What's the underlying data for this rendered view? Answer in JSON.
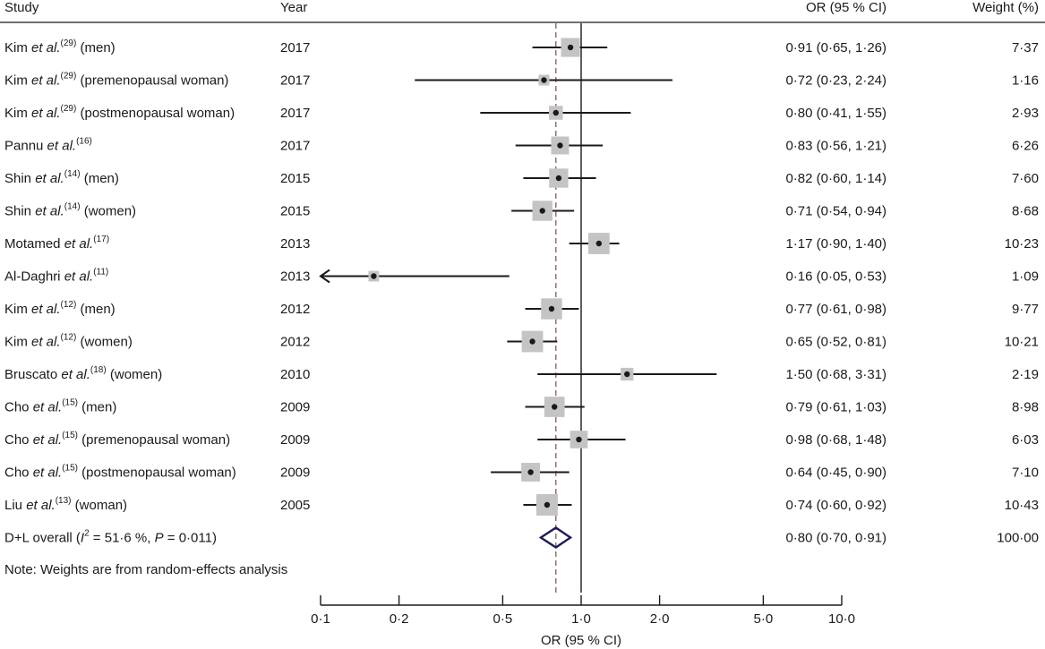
{
  "chart_data": {
    "type": "forest",
    "headers": {
      "study": "Study",
      "year": "Year",
      "or": "OR (95 % CI)",
      "weight": "Weight (%)"
    },
    "rows": [
      {
        "author": "Kim",
        "etal": "et al.",
        "ref": "(29)",
        "group": "(men)",
        "year": "2017",
        "or": 0.91,
        "lo": 0.65,
        "hi": 1.26,
        "or_text": "0·91 (0·65, 1·26)",
        "weight": 7.37,
        "weight_text": "7·37"
      },
      {
        "author": "Kim",
        "etal": "et al.",
        "ref": "(29)",
        "group": "(premenopausal woman)",
        "year": "2017",
        "or": 0.72,
        "lo": 0.23,
        "hi": 2.24,
        "or_text": "0·72 (0·23, 2·24)",
        "weight": 1.16,
        "weight_text": "1·16"
      },
      {
        "author": "Kim",
        "etal": "et al.",
        "ref": "(29)",
        "group": "(postmenopausal woman)",
        "year": "2017",
        "or": 0.8,
        "lo": 0.41,
        "hi": 1.55,
        "or_text": "0·80 (0·41, 1·55)",
        "weight": 2.93,
        "weight_text": "2·93"
      },
      {
        "author": "Pannu",
        "etal": "et al.",
        "ref": "(16)",
        "group": "",
        "year": "2017",
        "or": 0.83,
        "lo": 0.56,
        "hi": 1.21,
        "or_text": "0·83 (0·56, 1·21)",
        "weight": 6.26,
        "weight_text": "6·26"
      },
      {
        "author": "Shin",
        "etal": "et al.",
        "ref": "(14)",
        "group": "(men)",
        "year": "2015",
        "or": 0.82,
        "lo": 0.6,
        "hi": 1.14,
        "or_text": "0·82 (0·60, 1·14)",
        "weight": 7.6,
        "weight_text": "7·60"
      },
      {
        "author": "Shin",
        "etal": "et al.",
        "ref": "(14)",
        "group": "(women)",
        "year": "2015",
        "or": 0.71,
        "lo": 0.54,
        "hi": 0.94,
        "or_text": "0·71 (0·54, 0·94)",
        "weight": 8.68,
        "weight_text": "8·68"
      },
      {
        "author": "Motamed",
        "etal": "et al.",
        "ref": "(17)",
        "group": "",
        "year": "2013",
        "or": 1.17,
        "lo": 0.9,
        "hi": 1.4,
        "or_text": "1·17 (0·90, 1·40)",
        "weight": 10.23,
        "weight_text": "10·23"
      },
      {
        "author": "Al-Daghri",
        "etal": "et al.",
        "ref": "(11)",
        "group": "",
        "year": "2013",
        "or": 0.16,
        "lo": 0.05,
        "hi": 0.53,
        "or_text": "0·16 (0·05, 0·53)",
        "weight": 1.09,
        "weight_text": "1·09",
        "clipped_low": true
      },
      {
        "author": "Kim",
        "etal": "et al.",
        "ref": "(12)",
        "group": "(men)",
        "year": "2012",
        "or": 0.77,
        "lo": 0.61,
        "hi": 0.98,
        "or_text": "0·77 (0·61, 0·98)",
        "weight": 9.77,
        "weight_text": "9·77"
      },
      {
        "author": "Kim",
        "etal": "et al.",
        "ref": "(12)",
        "group": "(women)",
        "year": "2012",
        "or": 0.65,
        "lo": 0.52,
        "hi": 0.81,
        "or_text": "0·65 (0·52, 0·81)",
        "weight": 10.21,
        "weight_text": "10·21"
      },
      {
        "author": "Bruscato",
        "etal": "et al.",
        "ref": "(18)",
        "group": "(women)",
        "year": "2010",
        "or": 1.5,
        "lo": 0.68,
        "hi": 3.31,
        "or_text": "1·50 (0·68, 3·31)",
        "weight": 2.19,
        "weight_text": "2·19"
      },
      {
        "author": "Cho",
        "etal": "et al.",
        "ref": "(15)",
        "group": "(men)",
        "year": "2009",
        "or": 0.79,
        "lo": 0.61,
        "hi": 1.03,
        "or_text": "0·79 (0·61, 1·03)",
        "weight": 8.98,
        "weight_text": "8·98"
      },
      {
        "author": "Cho",
        "etal": "et al.",
        "ref": "(15)",
        "group": "(premenopausal woman)",
        "year": "2009",
        "or": 0.98,
        "lo": 0.68,
        "hi": 1.48,
        "or_text": "0·98 (0·68, 1·48)",
        "weight": 6.03,
        "weight_text": "6·03"
      },
      {
        "author": "Cho",
        "etal": "et al.",
        "ref": "(15)",
        "group": "(postmenopausal woman)",
        "year": "2009",
        "or": 0.64,
        "lo": 0.45,
        "hi": 0.9,
        "or_text": "0·64 (0·45, 0·90)",
        "weight": 7.1,
        "weight_text": "7·10"
      },
      {
        "author": "Liu",
        "etal": "et al.",
        "ref": "(13)",
        "group": "(woman)",
        "year": "2005",
        "or": 0.74,
        "lo": 0.6,
        "hi": 0.92,
        "or_text": "0·74 (0·60, 0·92)",
        "weight": 10.43,
        "weight_text": "10·43"
      }
    ],
    "overall": {
      "label_prefix": "D+L overall (",
      "i_symbol": "I",
      "i_exponent": "2",
      "i_value": " = 51·6 %, ",
      "p_symbol": "P",
      "p_value": " = 0·011)",
      "or": 0.8,
      "lo": 0.7,
      "hi": 0.91,
      "or_text": "0·80 (0·70, 0·91)",
      "weight_text": "100·00"
    },
    "note": "Note: Weights are from random-effects analysis",
    "x_axis": {
      "label": "OR (95 % CI)",
      "scale": "log",
      "ticks": [
        0.1,
        0.2,
        0.5,
        1.0,
        2.0,
        5.0,
        10.0
      ],
      "tick_labels": [
        "0·1",
        "0·2",
        "0·5",
        "1·0",
        "2·0",
        "5·0",
        "10·0"
      ],
      "range": [
        0.1,
        10.0
      ]
    },
    "null_line": 1.0,
    "overall_line": 0.8,
    "colors": {
      "ink": "#1a1a1a",
      "box": "#c4c4c4",
      "diamond": "#1c1c5a",
      "dashed": "#8a5a5a"
    }
  }
}
